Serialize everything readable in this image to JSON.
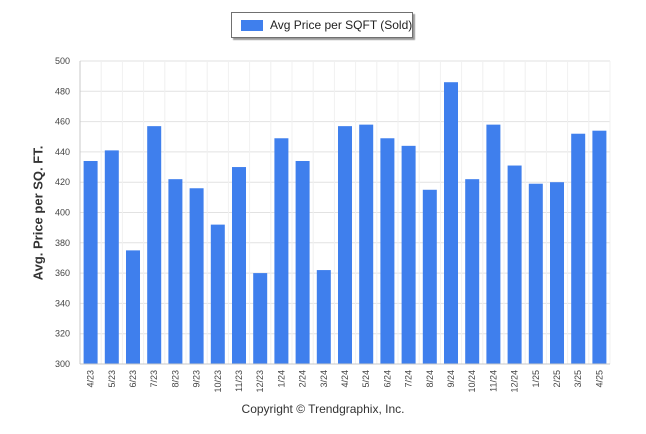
{
  "chart_data": {
    "type": "bar",
    "categories": [
      "4/23",
      "5/23",
      "6/23",
      "7/23",
      "8/23",
      "9/23",
      "10/23",
      "11/23",
      "12/23",
      "1/24",
      "2/24",
      "3/24",
      "4/24",
      "5/24",
      "6/24",
      "7/24",
      "8/24",
      "9/24",
      "10/24",
      "11/24",
      "12/24",
      "1/25",
      "2/25",
      "3/25",
      "4/25"
    ],
    "series": [
      {
        "name": "Avg Price per SQFT (Sold)",
        "values": [
          434,
          441,
          375,
          457,
          422,
          416,
          392,
          430,
          360,
          449,
          434,
          362,
          457,
          458,
          449,
          444,
          415,
          486,
          422,
          458,
          431,
          419,
          420,
          452,
          454
        ]
      }
    ],
    "title": "",
    "xlabel": "",
    "ylabel": "Avg. Price per SQ. FT.",
    "ylim": [
      300,
      500
    ],
    "yticks": [
      300,
      320,
      340,
      360,
      380,
      400,
      420,
      440,
      460,
      480,
      500
    ],
    "grid": true,
    "legend": "top-center",
    "bar_color": "#3f7fed"
  },
  "footer": {
    "copyright": "Copyright © Trendgraphix, Inc."
  }
}
